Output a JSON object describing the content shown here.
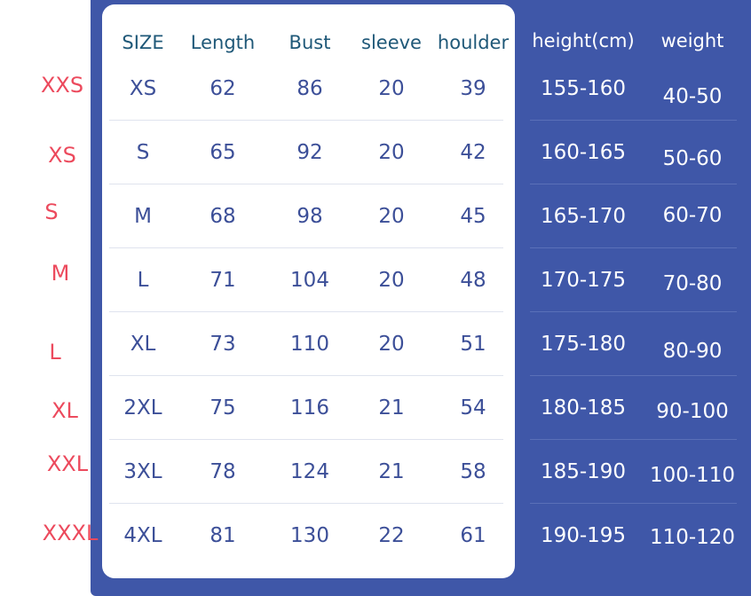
{
  "headers": [
    "SIZE",
    "Length",
    "Bust",
    "sleeve",
    "houlder",
    "height(cm)",
    "weight"
  ],
  "rows": [
    {
      "label": "XXS",
      "size": "XS",
      "length": 62,
      "bust": 86,
      "sleeve": 20,
      "shoulder": 39,
      "height": "155-160",
      "weight": "40-50"
    },
    {
      "label": "XS",
      "size": "S",
      "length": 65,
      "bust": 92,
      "sleeve": 20,
      "shoulder": 42,
      "height": "160-165",
      "weight": "50-60"
    },
    {
      "label": "S",
      "size": "M",
      "length": 68,
      "bust": 98,
      "sleeve": 20,
      "shoulder": 45,
      "height": "165-170",
      "weight": "60-70"
    },
    {
      "label": "M",
      "size": "L",
      "length": 71,
      "bust": 104,
      "sleeve": 20,
      "shoulder": 48,
      "height": "170-175",
      "weight": "70-80"
    },
    {
      "label": "L",
      "size": "XL",
      "length": 73,
      "bust": 110,
      "sleeve": 20,
      "shoulder": 51,
      "height": "175-180",
      "weight": "80-90"
    },
    {
      "label": "XL",
      "size": "2XL",
      "length": 75,
      "bust": 116,
      "sleeve": 21,
      "shoulder": 54,
      "height": "180-185",
      "weight": "90-100"
    },
    {
      "label": "XXL",
      "size": "3XL",
      "length": 78,
      "bust": 124,
      "sleeve": 21,
      "shoulder": 58,
      "height": "185-190",
      "weight": "100-110"
    },
    {
      "label": "XXXL",
      "size": "4XL",
      "length": 81,
      "bust": 130,
      "sleeve": 22,
      "shoulder": 61,
      "height": "190-195",
      "weight": "110-120"
    }
  ]
}
